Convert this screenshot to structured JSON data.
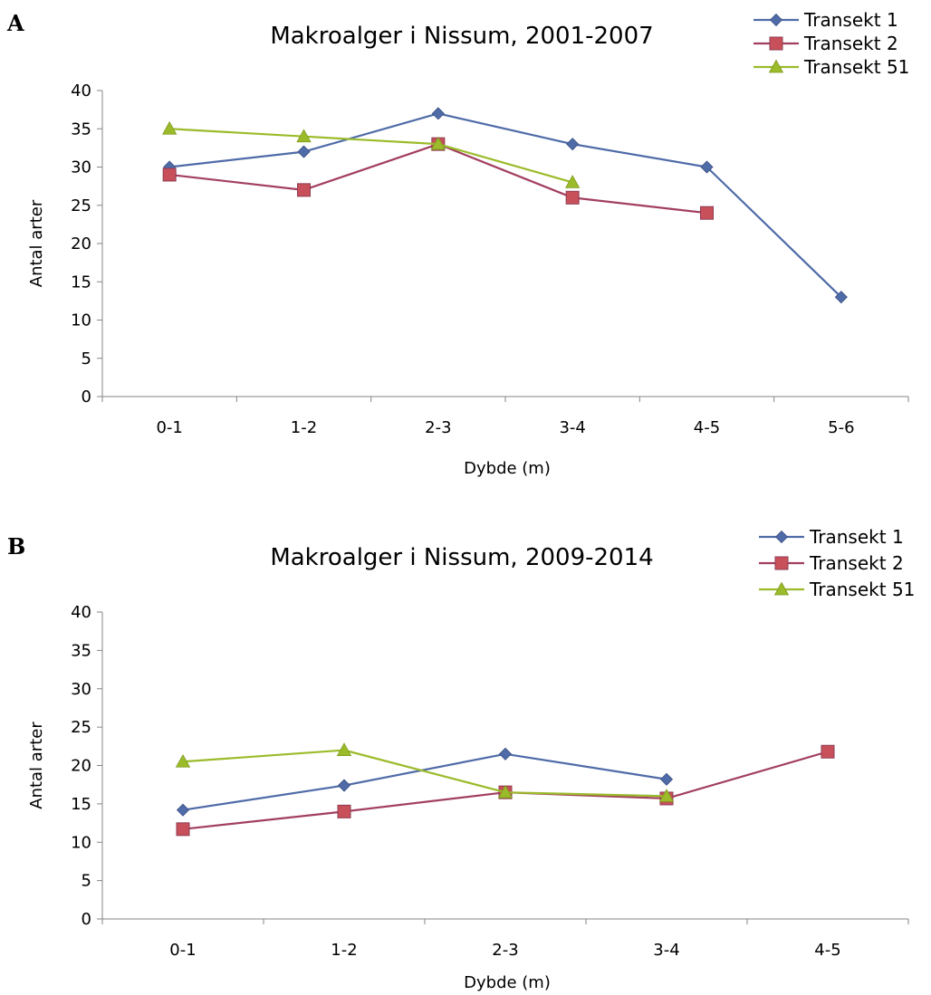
{
  "chart_data": [
    {
      "type": "line",
      "panel": "A",
      "title": "Makroalger i Nissum, 2001-2007",
      "xlabel": "Dybde (m)",
      "ylabel": "Antal arter",
      "categories": [
        "0-1",
        "1-2",
        "2-3",
        "3-4",
        "4-5",
        "5-6"
      ],
      "ylim": [
        0,
        40
      ],
      "yticks": [
        0,
        5,
        10,
        15,
        20,
        25,
        30,
        35,
        40
      ],
      "grid": false,
      "legend": "top-right",
      "series": [
        {
          "name": "Transekt 1",
          "color": "#4F6BA8",
          "marker": "diamond",
          "values": [
            30,
            32,
            37,
            33,
            30,
            13
          ]
        },
        {
          "name": "Transekt 2",
          "color": "#A23F5E",
          "marker": "square",
          "values": [
            29,
            27,
            33,
            26,
            24,
            null
          ]
        },
        {
          "name": "Transekt 51",
          "color": "#9BBB2A",
          "marker": "triangle",
          "values": [
            35,
            34,
            33,
            28,
            null,
            null
          ]
        }
      ]
    },
    {
      "type": "line",
      "panel": "B",
      "title": "Makroalger i Nissum, 2009-2014",
      "xlabel": "Dybde (m)",
      "ylabel": "Antal arter",
      "categories": [
        "0-1",
        "1-2",
        "2-3",
        "3-4",
        "4-5"
      ],
      "ylim": [
        0,
        40
      ],
      "yticks": [
        0,
        5,
        10,
        15,
        20,
        25,
        30,
        35,
        40
      ],
      "grid": false,
      "legend": "top-right",
      "series": [
        {
          "name": "Transekt 1",
          "color": "#4F6BA8",
          "marker": "diamond",
          "values": [
            14.2,
            17.4,
            21.5,
            18.2,
            null
          ]
        },
        {
          "name": "Transekt 2",
          "color": "#A23F5E",
          "marker": "square",
          "values": [
            11.7,
            14,
            16.5,
            15.7,
            21.8
          ]
        },
        {
          "name": "Transekt 51",
          "color": "#9BBB2A",
          "marker": "triangle",
          "values": [
            20.5,
            22,
            16.5,
            16,
            null
          ]
        }
      ]
    }
  ]
}
